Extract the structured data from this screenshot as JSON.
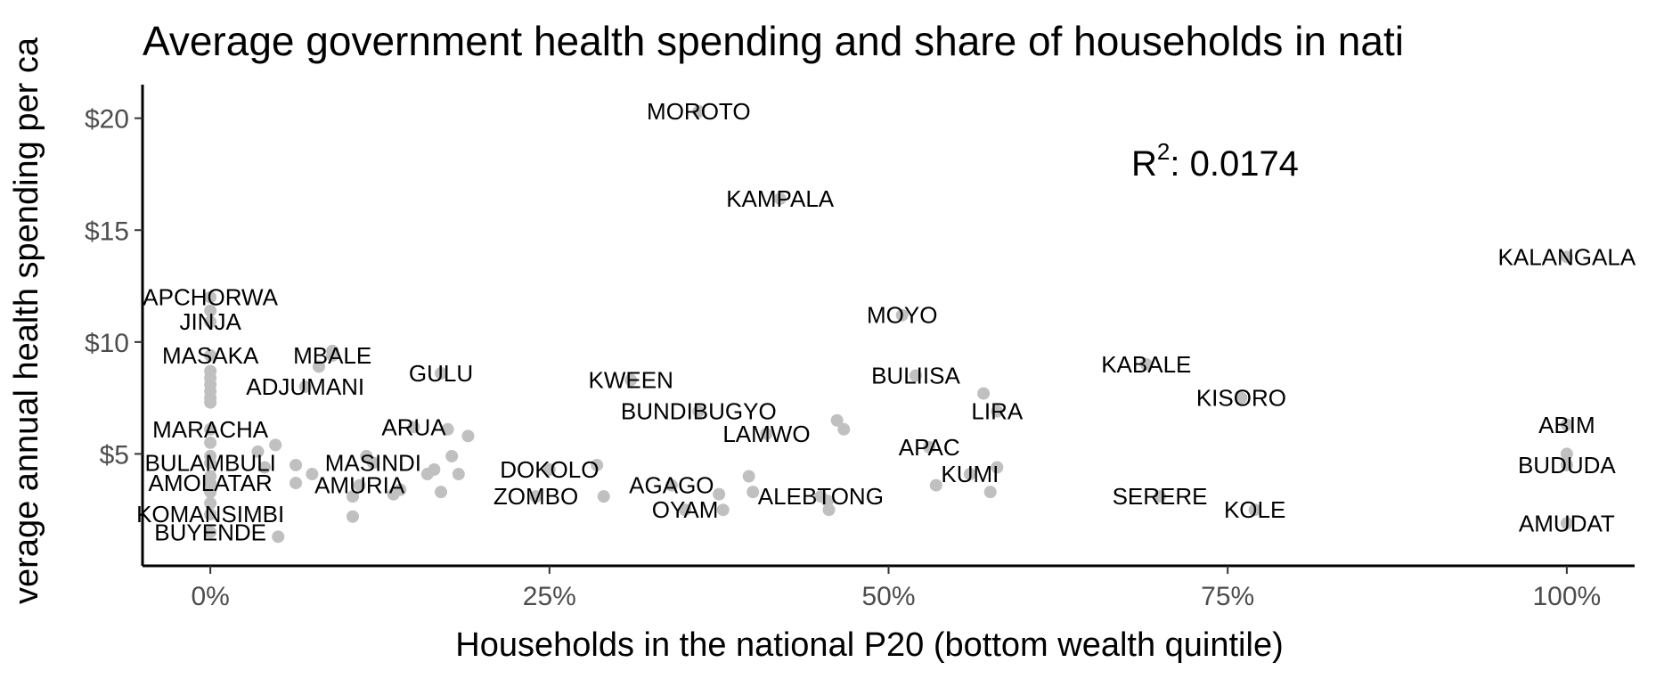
{
  "chart_data": {
    "type": "scatter",
    "title": "Average government health spending and share of households in nati",
    "xlabel": "Households in the national P20 (bottom wealth quintile)",
    "ylabel": "verage annual health spending per ca",
    "xlim": [
      -0.05,
      1.05
    ],
    "ylim": [
      0,
      21.5
    ],
    "x_ticks": [
      0,
      0.25,
      0.5,
      0.75,
      1.0
    ],
    "x_tick_labels": [
      "0%",
      "25%",
      "50%",
      "75%",
      "100%"
    ],
    "y_ticks": [
      5,
      10,
      15,
      20
    ],
    "y_tick_labels": [
      "$5",
      "$10",
      "$15",
      "$20"
    ],
    "annotation": {
      "r2_symbol": "R",
      "r2_sup": "2",
      "r2_value": ": 0.0174"
    },
    "point_color": "#c0c0c0",
    "grid": false,
    "labeled_points": [
      {
        "name": "MOROTO",
        "x": 0.36,
        "y": 20.3
      },
      {
        "name": "KAMPALA",
        "x": 0.42,
        "y": 16.4
      },
      {
        "name": "KALANGALA",
        "x": 1.0,
        "y": 13.8
      },
      {
        "name": "APCHORWA",
        "x": 0.0,
        "y": 12.0
      },
      {
        "name": "JINJA",
        "x": 0.0,
        "y": 10.9
      },
      {
        "name": "MOYO",
        "x": 0.51,
        "y": 11.2
      },
      {
        "name": "MASAKA",
        "x": 0.0,
        "y": 9.4
      },
      {
        "name": "MBALE",
        "x": 0.09,
        "y": 9.4
      },
      {
        "name": "KABALE",
        "x": 0.69,
        "y": 9.0
      },
      {
        "name": "GULU",
        "x": 0.17,
        "y": 8.6
      },
      {
        "name": "KWEEN",
        "x": 0.31,
        "y": 8.3
      },
      {
        "name": "BULIISA",
        "x": 0.52,
        "y": 8.5
      },
      {
        "name": "ADJUMANI",
        "x": 0.07,
        "y": 8.0
      },
      {
        "name": "KISORO",
        "x": 0.76,
        "y": 7.5
      },
      {
        "name": "BUNDIBUGYO",
        "x": 0.36,
        "y": 6.9
      },
      {
        "name": "LIRA",
        "x": 0.58,
        "y": 6.9
      },
      {
        "name": "ABIM",
        "x": 1.0,
        "y": 6.3
      },
      {
        "name": "MARACHA",
        "x": 0.0,
        "y": 6.1
      },
      {
        "name": "ARUA",
        "x": 0.15,
        "y": 6.2
      },
      {
        "name": "LAMWO",
        "x": 0.41,
        "y": 5.9
      },
      {
        "name": "APAC",
        "x": 0.53,
        "y": 5.3
      },
      {
        "name": "MASINDI",
        "x": 0.12,
        "y": 4.6
      },
      {
        "name": "BULAMBULI",
        "x": 0.0,
        "y": 4.6
      },
      {
        "name": "DOKOLO",
        "x": 0.25,
        "y": 4.3
      },
      {
        "name": "BUDUDA",
        "x": 1.0,
        "y": 4.5
      },
      {
        "name": "KUMI",
        "x": 0.56,
        "y": 4.1
      },
      {
        "name": "AMOLATAR",
        "x": 0.0,
        "y": 3.7
      },
      {
        "name": "AMURIA",
        "x": 0.11,
        "y": 3.6
      },
      {
        "name": "AGAGO",
        "x": 0.34,
        "y": 3.6
      },
      {
        "name": "ZOMBO",
        "x": 0.24,
        "y": 3.1
      },
      {
        "name": "ALEBTONG",
        "x": 0.45,
        "y": 3.1
      },
      {
        "name": "SERERE",
        "x": 0.7,
        "y": 3.1
      },
      {
        "name": "OYAM",
        "x": 0.35,
        "y": 2.5
      },
      {
        "name": "KOLE",
        "x": 0.77,
        "y": 2.5
      },
      {
        "name": "KOMANSIMBI",
        "x": 0.0,
        "y": 2.3
      },
      {
        "name": "AMUDAT",
        "x": 1.0,
        "y": 1.9
      },
      {
        "name": "BUYENDE",
        "x": 0.0,
        "y": 1.5
      }
    ],
    "unlabeled_points": [
      {
        "x": 0.0,
        "y": 11.4
      },
      {
        "x": 0.0,
        "y": 8.7
      },
      {
        "x": 0.0,
        "y": 8.4
      },
      {
        "x": 0.0,
        "y": 8.1
      },
      {
        "x": 0.0,
        "y": 7.8
      },
      {
        "x": 0.0,
        "y": 7.5
      },
      {
        "x": 0.0,
        "y": 7.3
      },
      {
        "x": 0.0,
        "y": 5.5
      },
      {
        "x": 0.0,
        "y": 4.9
      },
      {
        "x": 0.0,
        "y": 4.0
      },
      {
        "x": 0.0,
        "y": 3.3
      },
      {
        "x": 0.0,
        "y": 2.8
      },
      {
        "x": 0.035,
        "y": 5.1
      },
      {
        "x": 0.04,
        "y": 4.4
      },
      {
        "x": 0.048,
        "y": 5.4
      },
      {
        "x": 0.05,
        "y": 1.3
      },
      {
        "x": 0.063,
        "y": 4.5
      },
      {
        "x": 0.063,
        "y": 3.7
      },
      {
        "x": 0.075,
        "y": 4.1
      },
      {
        "x": 0.08,
        "y": 8.9
      },
      {
        "x": 0.09,
        "y": 9.6
      },
      {
        "x": 0.105,
        "y": 3.1
      },
      {
        "x": 0.105,
        "y": 2.2
      },
      {
        "x": 0.115,
        "y": 4.9
      },
      {
        "x": 0.135,
        "y": 3.2
      },
      {
        "x": 0.14,
        "y": 3.4
      },
      {
        "x": 0.16,
        "y": 4.1
      },
      {
        "x": 0.165,
        "y": 4.3
      },
      {
        "x": 0.17,
        "y": 3.3
      },
      {
        "x": 0.175,
        "y": 6.1
      },
      {
        "x": 0.178,
        "y": 4.9
      },
      {
        "x": 0.183,
        "y": 4.1
      },
      {
        "x": 0.19,
        "y": 5.8
      },
      {
        "x": 0.285,
        "y": 4.5
      },
      {
        "x": 0.29,
        "y": 3.1
      },
      {
        "x": 0.375,
        "y": 3.2
      },
      {
        "x": 0.378,
        "y": 2.5
      },
      {
        "x": 0.397,
        "y": 4.0
      },
      {
        "x": 0.4,
        "y": 3.3
      },
      {
        "x": 0.455,
        "y": 2.9
      },
      {
        "x": 0.456,
        "y": 2.5
      },
      {
        "x": 0.462,
        "y": 6.5
      },
      {
        "x": 0.467,
        "y": 6.1
      },
      {
        "x": 0.535,
        "y": 3.6
      },
      {
        "x": 0.57,
        "y": 7.7
      },
      {
        "x": 0.575,
        "y": 3.3
      },
      {
        "x": 0.58,
        "y": 4.4
      },
      {
        "x": 1.0,
        "y": 5.0
      }
    ]
  }
}
